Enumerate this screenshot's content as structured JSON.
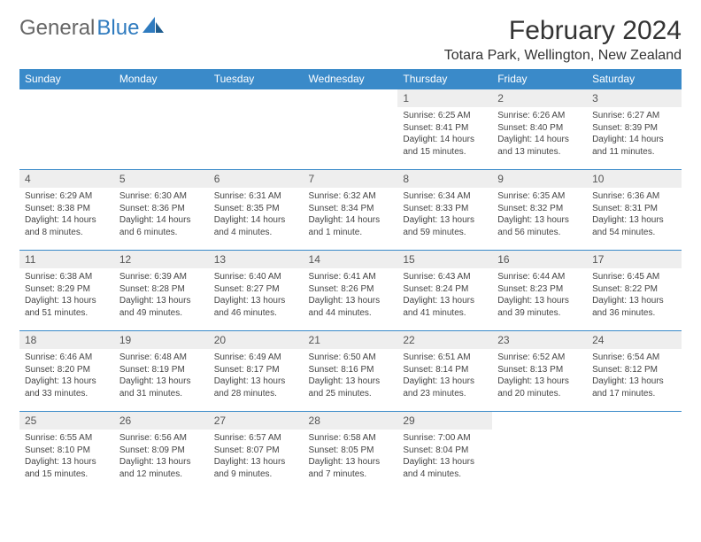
{
  "brand": {
    "part1": "General",
    "part2": "Blue"
  },
  "title": "February 2024",
  "location": "Totara Park, Wellington, New Zealand",
  "colors": {
    "header_bg": "#3a8ac9",
    "header_text": "#ffffff",
    "daynum_bg": "#eeeeee",
    "rule": "#3a8ac9",
    "logo_blue": "#2f7bbf"
  },
  "day_headers": [
    "Sunday",
    "Monday",
    "Tuesday",
    "Wednesday",
    "Thursday",
    "Friday",
    "Saturday"
  ],
  "weeks": [
    [
      null,
      null,
      null,
      null,
      {
        "n": "1",
        "sr": "6:25 AM",
        "ss": "8:41 PM",
        "dl": "14 hours and 15 minutes."
      },
      {
        "n": "2",
        "sr": "6:26 AM",
        "ss": "8:40 PM",
        "dl": "14 hours and 13 minutes."
      },
      {
        "n": "3",
        "sr": "6:27 AM",
        "ss": "8:39 PM",
        "dl": "14 hours and 11 minutes."
      }
    ],
    [
      {
        "n": "4",
        "sr": "6:29 AM",
        "ss": "8:38 PM",
        "dl": "14 hours and 8 minutes."
      },
      {
        "n": "5",
        "sr": "6:30 AM",
        "ss": "8:36 PM",
        "dl": "14 hours and 6 minutes."
      },
      {
        "n": "6",
        "sr": "6:31 AM",
        "ss": "8:35 PM",
        "dl": "14 hours and 4 minutes."
      },
      {
        "n": "7",
        "sr": "6:32 AM",
        "ss": "8:34 PM",
        "dl": "14 hours and 1 minute."
      },
      {
        "n": "8",
        "sr": "6:34 AM",
        "ss": "8:33 PM",
        "dl": "13 hours and 59 minutes."
      },
      {
        "n": "9",
        "sr": "6:35 AM",
        "ss": "8:32 PM",
        "dl": "13 hours and 56 minutes."
      },
      {
        "n": "10",
        "sr": "6:36 AM",
        "ss": "8:31 PM",
        "dl": "13 hours and 54 minutes."
      }
    ],
    [
      {
        "n": "11",
        "sr": "6:38 AM",
        "ss": "8:29 PM",
        "dl": "13 hours and 51 minutes."
      },
      {
        "n": "12",
        "sr": "6:39 AM",
        "ss": "8:28 PM",
        "dl": "13 hours and 49 minutes."
      },
      {
        "n": "13",
        "sr": "6:40 AM",
        "ss": "8:27 PM",
        "dl": "13 hours and 46 minutes."
      },
      {
        "n": "14",
        "sr": "6:41 AM",
        "ss": "8:26 PM",
        "dl": "13 hours and 44 minutes."
      },
      {
        "n": "15",
        "sr": "6:43 AM",
        "ss": "8:24 PM",
        "dl": "13 hours and 41 minutes."
      },
      {
        "n": "16",
        "sr": "6:44 AM",
        "ss": "8:23 PM",
        "dl": "13 hours and 39 minutes."
      },
      {
        "n": "17",
        "sr": "6:45 AM",
        "ss": "8:22 PM",
        "dl": "13 hours and 36 minutes."
      }
    ],
    [
      {
        "n": "18",
        "sr": "6:46 AM",
        "ss": "8:20 PM",
        "dl": "13 hours and 33 minutes."
      },
      {
        "n": "19",
        "sr": "6:48 AM",
        "ss": "8:19 PM",
        "dl": "13 hours and 31 minutes."
      },
      {
        "n": "20",
        "sr": "6:49 AM",
        "ss": "8:17 PM",
        "dl": "13 hours and 28 minutes."
      },
      {
        "n": "21",
        "sr": "6:50 AM",
        "ss": "8:16 PM",
        "dl": "13 hours and 25 minutes."
      },
      {
        "n": "22",
        "sr": "6:51 AM",
        "ss": "8:14 PM",
        "dl": "13 hours and 23 minutes."
      },
      {
        "n": "23",
        "sr": "6:52 AM",
        "ss": "8:13 PM",
        "dl": "13 hours and 20 minutes."
      },
      {
        "n": "24",
        "sr": "6:54 AM",
        "ss": "8:12 PM",
        "dl": "13 hours and 17 minutes."
      }
    ],
    [
      {
        "n": "25",
        "sr": "6:55 AM",
        "ss": "8:10 PM",
        "dl": "13 hours and 15 minutes."
      },
      {
        "n": "26",
        "sr": "6:56 AM",
        "ss": "8:09 PM",
        "dl": "13 hours and 12 minutes."
      },
      {
        "n": "27",
        "sr": "6:57 AM",
        "ss": "8:07 PM",
        "dl": "13 hours and 9 minutes."
      },
      {
        "n": "28",
        "sr": "6:58 AM",
        "ss": "8:05 PM",
        "dl": "13 hours and 7 minutes."
      },
      {
        "n": "29",
        "sr": "7:00 AM",
        "ss": "8:04 PM",
        "dl": "13 hours and 4 minutes."
      },
      null,
      null
    ]
  ],
  "labels": {
    "sunrise": "Sunrise:",
    "sunset": "Sunset:",
    "daylight": "Daylight:"
  }
}
